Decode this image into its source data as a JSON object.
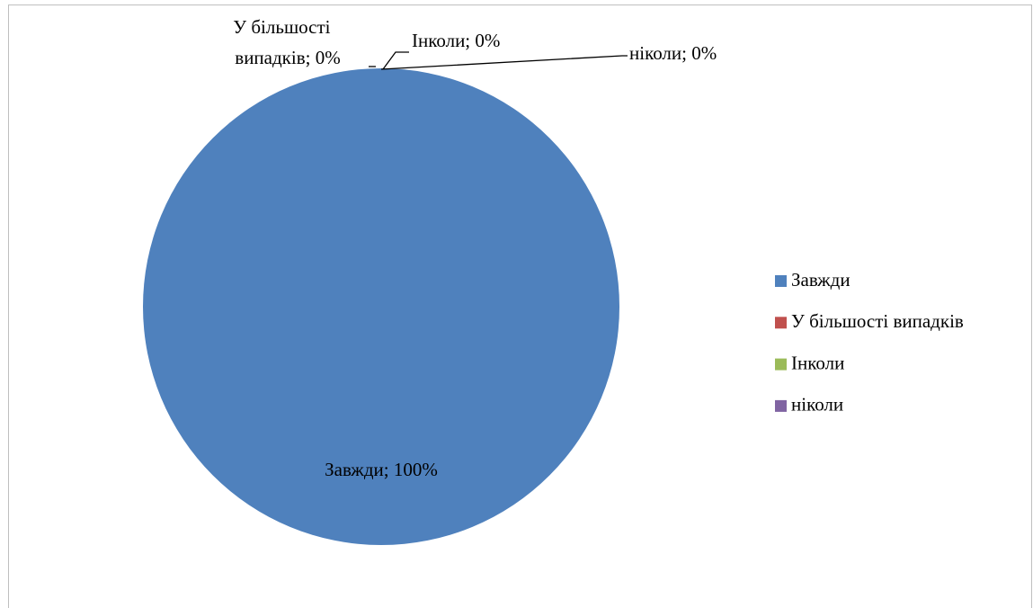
{
  "chart_data": {
    "type": "pie",
    "categories": [
      "Завжди",
      "У більшості випадків",
      "Інколи",
      "ніколи"
    ],
    "values": [
      100,
      0,
      0,
      0
    ],
    "value_labels": [
      "Завжди; 100%",
      "У більшості випадків; 0%",
      "Інколи; 0%",
      "ніколи; 0%"
    ],
    "colors": [
      "#4f81bd",
      "#c0504d",
      "#9bbb59",
      "#8064a2"
    ],
    "legend": "right"
  }
}
